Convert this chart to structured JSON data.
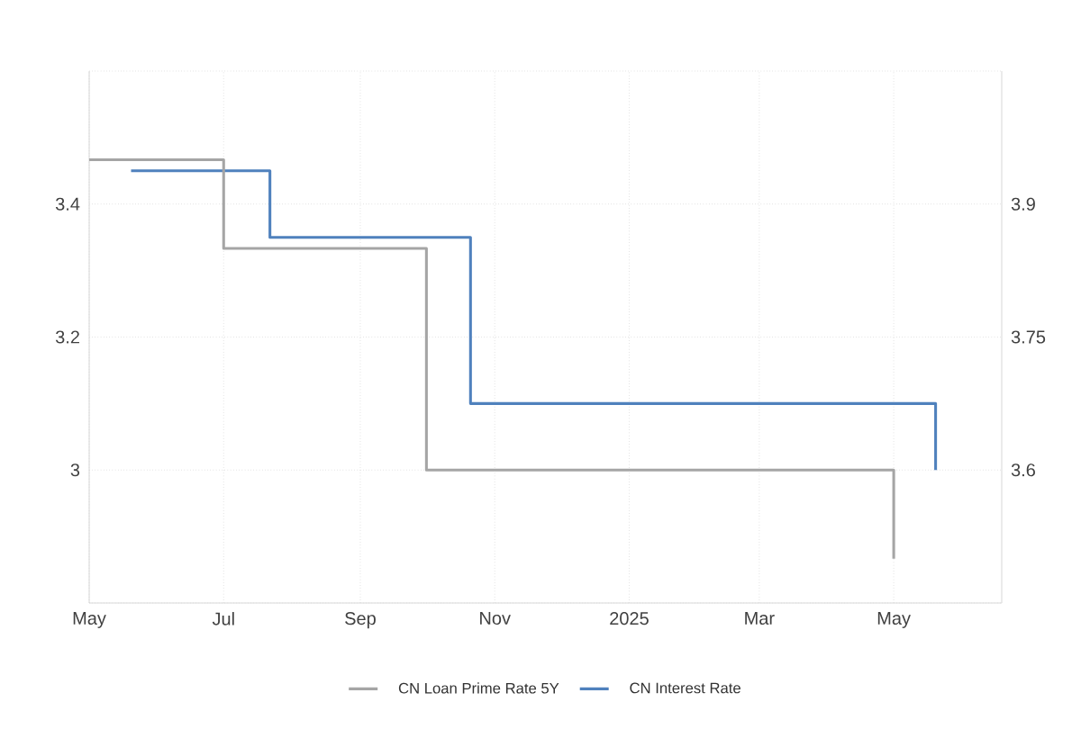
{
  "chart_data": {
    "type": "step",
    "series": [
      {
        "name": "CN Loan Prime Rate 5Y",
        "color": "#a5a5a5",
        "axis": "y2",
        "x": [
          "2024-05-01",
          "2024-07-01",
          "2024-10-01",
          "2025-05-01"
        ],
        "values": [
          3.95,
          3.85,
          3.6,
          3.5
        ]
      },
      {
        "name": "CN Interest Rate",
        "color": "#4f81bd",
        "x": [
          "2024-05-20",
          "2024-07-22",
          "2024-10-21",
          "2025-05-20"
        ],
        "values": [
          3.45,
          3.35,
          3.1,
          3.0
        ]
      }
    ],
    "xlim": [
      "2024-05-01",
      "2025-06-19"
    ],
    "xticks": [
      {
        "value": "2024-05-01",
        "label": "May"
      },
      {
        "value": "2024-07-01",
        "label": "Jul"
      },
      {
        "value": "2024-09-01",
        "label": "Sep"
      },
      {
        "value": "2024-11-01",
        "label": "Nov"
      },
      {
        "value": "2025-01-01",
        "label": "2025"
      },
      {
        "value": "2025-03-01",
        "label": "Mar"
      },
      {
        "value": "2025-05-01",
        "label": "May"
      }
    ],
    "ylim": [
      2.8,
      3.6
    ],
    "yticks": [
      {
        "value": 2.8,
        "label": null
      },
      3,
      3.2,
      3.4,
      {
        "value": 3.6,
        "label": null
      }
    ],
    "y2lim": [
      3.45,
      4.05
    ],
    "y2ticks": [
      3.6,
      3.75,
      3.9
    ],
    "grid": true,
    "legend": "bottom",
    "line_style": "solid",
    "marker": "none"
  }
}
